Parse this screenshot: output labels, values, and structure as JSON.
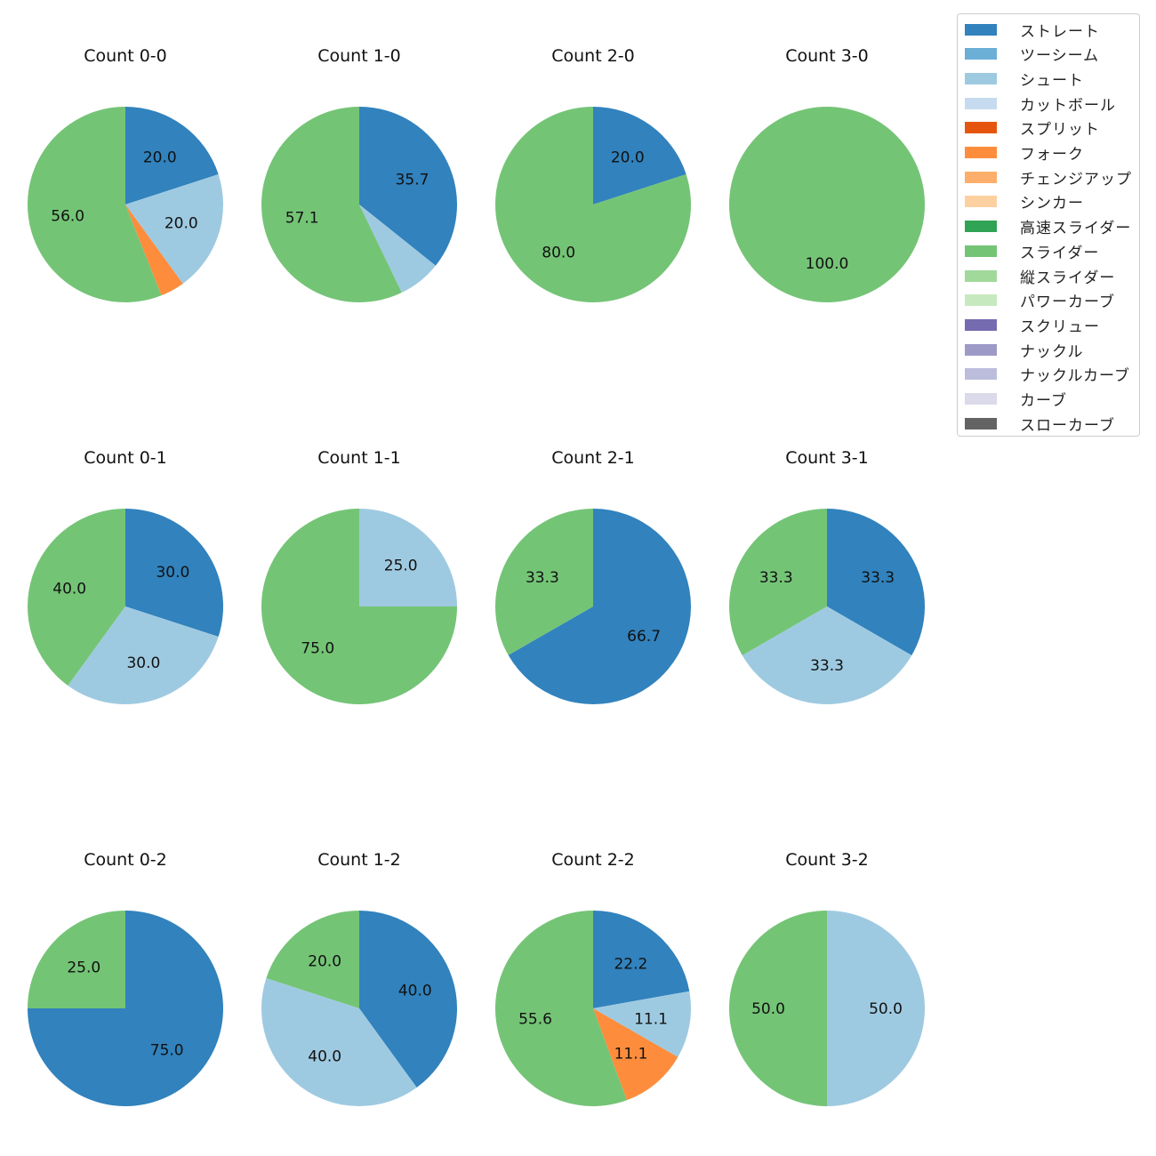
{
  "colors": {
    "ストレート": "#3182bd",
    "ツーシーム": "#6baed6",
    "シュート": "#9ecae1",
    "カットボール": "#c6dbef",
    "スプリット": "#e6550d",
    "フォーク": "#fd8d3c",
    "チェンジアップ": "#fdae6b",
    "シンカー": "#fdd0a2",
    "高速スライダー": "#31a354",
    "スライダー": "#74c476",
    "縦スライダー": "#a1d99b",
    "パワーカーブ": "#c7e9c0",
    "スクリュー": "#756bb1",
    "ナックル": "#9e9ac8",
    "ナックルカーブ": "#bcbddc",
    "カーブ": "#dadaeb",
    "スローカーブ": "#636363"
  },
  "legend": {
    "items": [
      "ストレート",
      "ツーシーム",
      "シュート",
      "カットボール",
      "スプリット",
      "フォーク",
      "チェンジアップ",
      "シンカー",
      "高速スライダー",
      "スライダー",
      "縦スライダー",
      "パワーカーブ",
      "スクリュー",
      "ナックル",
      "ナックルカーブ",
      "カーブ",
      "スローカーブ"
    ]
  },
  "chart_data": [
    {
      "type": "pie",
      "title": "Count 0-0",
      "labels": [
        "ストレート",
        "シュート",
        "フォーク",
        "スライダー"
      ],
      "values": [
        20.0,
        20.0,
        4.0,
        56.0
      ],
      "data_labels": [
        "20.0",
        "20.0",
        "",
        "56.0"
      ]
    },
    {
      "type": "pie",
      "title": "Count 1-0",
      "labels": [
        "ストレート",
        "シュート",
        "スライダー"
      ],
      "values": [
        35.7,
        7.1,
        57.1
      ],
      "data_labels": [
        "35.7",
        "",
        "57.1"
      ]
    },
    {
      "type": "pie",
      "title": "Count 2-0",
      "labels": [
        "ストレート",
        "スライダー"
      ],
      "values": [
        20.0,
        80.0
      ],
      "data_labels": [
        "20.0",
        "80.0"
      ]
    },
    {
      "type": "pie",
      "title": "Count 3-0",
      "labels": [
        "スライダー"
      ],
      "values": [
        100.0
      ],
      "data_labels": [
        "100.0"
      ]
    },
    {
      "type": "pie",
      "title": "Count 0-1",
      "labels": [
        "ストレート",
        "シュート",
        "スライダー"
      ],
      "values": [
        30.0,
        30.0,
        40.0
      ],
      "data_labels": [
        "30.0",
        "30.0",
        "40.0"
      ]
    },
    {
      "type": "pie",
      "title": "Count 1-1",
      "labels": [
        "シュート",
        "スライダー"
      ],
      "values": [
        25.0,
        75.0
      ],
      "data_labels": [
        "25.0",
        "75.0"
      ]
    },
    {
      "type": "pie",
      "title": "Count 2-1",
      "labels": [
        "ストレート",
        "スライダー"
      ],
      "values": [
        66.7,
        33.3
      ],
      "data_labels": [
        "66.7",
        "33.3"
      ]
    },
    {
      "type": "pie",
      "title": "Count 3-1",
      "labels": [
        "ストレート",
        "シュート",
        "スライダー"
      ],
      "values": [
        33.3,
        33.3,
        33.3
      ],
      "data_labels": [
        "33.3",
        "33.3",
        "33.3"
      ]
    },
    {
      "type": "pie",
      "title": "Count 0-2",
      "labels": [
        "ストレート",
        "スライダー"
      ],
      "values": [
        75.0,
        25.0
      ],
      "data_labels": [
        "75.0",
        "25.0"
      ]
    },
    {
      "type": "pie",
      "title": "Count 1-2",
      "labels": [
        "ストレート",
        "シュート",
        "スライダー"
      ],
      "values": [
        40.0,
        40.0,
        20.0
      ],
      "data_labels": [
        "40.0",
        "40.0",
        "20.0"
      ]
    },
    {
      "type": "pie",
      "title": "Count 2-2",
      "labels": [
        "ストレート",
        "シュート",
        "フォーク",
        "スライダー"
      ],
      "values": [
        22.2,
        11.1,
        11.1,
        55.6
      ],
      "data_labels": [
        "22.2",
        "11.1",
        "11.1",
        "55.6"
      ]
    },
    {
      "type": "pie",
      "title": "Count 3-2",
      "labels": [
        "シュート",
        "スライダー"
      ],
      "values": [
        50.0,
        50.0
      ],
      "data_labels": [
        "50.0",
        "50.0"
      ]
    }
  ]
}
